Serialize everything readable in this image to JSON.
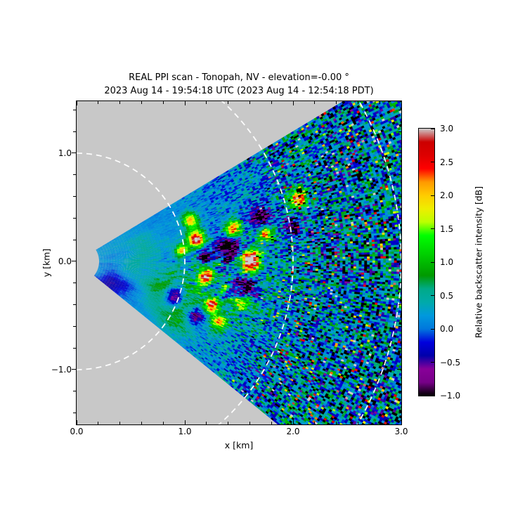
{
  "header": {
    "title_line1": "REAL PPI scan - Tonopah, NV - elevation=-0.00 °",
    "title_line2": "2023 Aug 14 - 19:54:18 UTC (2023 Aug 14 - 12:54:18 PDT)"
  },
  "chart_data": {
    "type": "heatmap",
    "subtype": "lidar-ppi-polar-scan",
    "title": "REAL PPI scan - Tonopah, NV - elevation=-0.00 °",
    "subtitle": "2023 Aug 14 - 19:54:18 UTC (2023 Aug 14 - 12:54:18 PDT)",
    "site": "Tonopah, NV",
    "elevation_deg": "-0.00",
    "xlabel": "x [km]",
    "ylabel": "y [km]",
    "xlim": [
      0.0,
      3.0
    ],
    "ylim": [
      -1.5065,
      1.4805
    ],
    "background_color": "#c8c8c8",
    "x_ticks": {
      "values": [
        0.0,
        1.0,
        2.0,
        3.0
      ],
      "labels": [
        "0.0",
        "1.0",
        "2.0",
        "3.0"
      ],
      "minor_step": 0.2
    },
    "y_ticks": {
      "values": [
        1.0,
        0.0,
        -1.0
      ],
      "labels": [
        "1.0",
        "0.0",
        "−1.0"
      ],
      "minor_step": 0.2
    },
    "colorbar": {
      "label": "Relative backscatter intensity [dB]",
      "vmin": -1.0,
      "vmax": 3.0,
      "tick_values": [
        3.0,
        2.5,
        2.0,
        1.5,
        1.0,
        0.5,
        0.0,
        -0.5,
        -1.0
      ],
      "tick_labels": [
        "3.0",
        "2.5",
        "2.0",
        "1.5",
        "1.0",
        "0.5",
        "0.0",
        "−0.5",
        "−1.0"
      ]
    },
    "range_rings": {
      "radii_km": [
        1.0,
        2.0,
        3.0
      ],
      "color": "rgba(255,255,255,0.95)",
      "dash": [
        8,
        6
      ],
      "line_width": 1.8
    },
    "wedge": {
      "r_inner_km": 0.21,
      "r_outer_km": 3.35,
      "theta_min_deg": -39.0,
      "theta_max_deg": 31.0,
      "d_theta_deg": 0.4,
      "d_r_km": 0.025
    },
    "colormap": {
      "name": "nipy_spectral",
      "stops": [
        [
          0.0,
          0,
          0,
          0
        ],
        [
          0.05,
          119,
          0,
          136
        ],
        [
          0.1,
          136,
          0,
          153
        ],
        [
          0.15,
          0,
          0,
          170
        ],
        [
          0.2,
          0,
          0,
          221
        ],
        [
          0.25,
          0,
          119,
          221
        ],
        [
          0.3,
          0,
          153,
          221
        ],
        [
          0.35,
          0,
          170,
          170
        ],
        [
          0.4,
          0,
          170,
          136
        ],
        [
          0.45,
          0,
          153,
          0
        ],
        [
          0.5,
          0,
          187,
          0
        ],
        [
          0.55,
          0,
          221,
          0
        ],
        [
          0.6,
          0,
          255,
          0
        ],
        [
          0.65,
          187,
          255,
          0
        ],
        [
          0.7,
          238,
          238,
          0
        ],
        [
          0.75,
          255,
          204,
          0
        ],
        [
          0.8,
          255,
          153,
          0
        ],
        [
          0.85,
          255,
          0,
          0
        ],
        [
          0.9,
          221,
          0,
          0
        ],
        [
          0.95,
          204,
          0,
          0
        ],
        [
          1.0,
          204,
          204,
          204
        ]
      ]
    },
    "noise": {
      "seed": 42,
      "base": {
        "offset": 0.02,
        "amp": 0.2,
        "scale": 0.8
      },
      "mottle": {
        "amp": 0.16,
        "fr": 3.0,
        "fth": 0.18,
        "shear": 0.05
      },
      "speckle": {
        "sigma_inner": 0.1,
        "sigma_outer": 0.7,
        "r_start": 0.7,
        "r_end": 2.3,
        "mean_outer": 0.18
      },
      "tails": {
        "r0": 1.6,
        "r1": 2.6,
        "p_low": 0.14,
        "low": [
          -1.6,
          -1.0
        ],
        "p_high": 0.05,
        "high": [
          1.5,
          3.3
        ]
      },
      "band": {
        "r0": 1.38,
        "sr": 0.5,
        "th0": -4,
        "sth": 16,
        "amp": 1.7,
        "offset": 0.45,
        "fr": 22,
        "shear": 0.5,
        "fth": 0.75
      },
      "edge_shade": {
        "amp": 0.12,
        "theta_deg": -39,
        "sth": 4,
        "r_fade": 1.2
      },
      "blobs": [
        [
          1.1,
          0.21,
          0.055,
          2.8
        ],
        [
          1.19,
          -0.14,
          0.05,
          2.6
        ],
        [
          1.61,
          0.01,
          0.06,
          2.9
        ],
        [
          2.05,
          0.58,
          0.055,
          2.5
        ],
        [
          1.25,
          -0.4,
          0.045,
          2.3
        ],
        [
          1.05,
          0.38,
          0.05,
          2.0
        ],
        [
          1.45,
          0.3,
          0.05,
          2.2
        ],
        [
          0.97,
          0.1,
          0.04,
          1.7
        ],
        [
          1.32,
          -0.56,
          0.05,
          1.9
        ],
        [
          1.75,
          0.25,
          0.045,
          1.9
        ],
        [
          1.52,
          -0.38,
          0.045,
          1.8
        ],
        [
          0.9,
          -0.33,
          0.07,
          -1.7
        ],
        [
          1.4,
          0.12,
          0.08,
          -1.8
        ],
        [
          1.56,
          -0.24,
          0.07,
          -1.6
        ],
        [
          1.2,
          0.04,
          0.05,
          -1.5
        ],
        [
          2.0,
          0.32,
          0.06,
          -1.3
        ],
        [
          1.1,
          -0.5,
          0.06,
          -1.4
        ],
        [
          1.68,
          0.42,
          0.07,
          -1.4
        ],
        [
          0.95,
          -0.45,
          0.16,
          0.85
        ],
        [
          0.78,
          -0.25,
          0.12,
          0.5
        ],
        [
          0.62,
          0.12,
          0.09,
          0.35
        ],
        [
          0.5,
          -0.05,
          0.08,
          0.25
        ],
        [
          0.31,
          -0.18,
          0.07,
          -0.5
        ],
        [
          0.45,
          -0.22,
          0.06,
          -0.3
        ]
      ]
    }
  }
}
